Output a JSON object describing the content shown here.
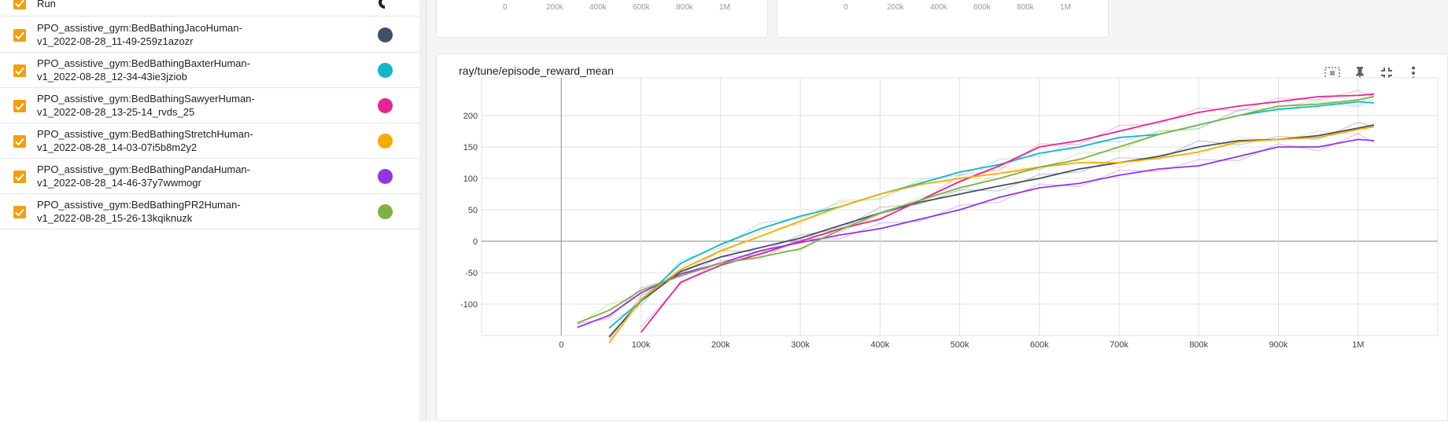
{
  "sidebar": {
    "header_label": "Run",
    "runs": [
      {
        "name_line1": "PPO_assistive_gym:BedBathingJacoHuman-",
        "name_line2": "v1_2022-08-28_11-49-259z1azozr",
        "color": "#425066"
      },
      {
        "name_line1": "PPO_assistive_gym:BedBathingBaxterHuman-",
        "name_line2": "v1_2022-08-28_12-34-43ie3jziob",
        "color": "#12b5cb"
      },
      {
        "name_line1": "PPO_assistive_gym:BedBathingSawyerHuman-",
        "name_line2": "v1_2022-08-28_13-25-14_rvds_25",
        "color": "#e52592"
      },
      {
        "name_line1": "PPO_assistive_gym:BedBathingStretchHuman-",
        "name_line2": "v1_2022-08-28_14-03-07i5b8m2y2",
        "color": "#f9ab00"
      },
      {
        "name_line1": "PPO_assistive_gym:BedBathingPandaHuman-",
        "name_line2": "v1_2022-08-28_14-46-37y7wwmogr",
        "color": "#9334e6"
      },
      {
        "name_line1": "PPO_assistive_gym:BedBathingPR2Human-",
        "name_line2": "v1_2022-08-28_15-26-13kqiknuzk",
        "color": "#7cb342"
      }
    ]
  },
  "mini_cards": {
    "ticks": [
      "0",
      "200k",
      "400k",
      "600k",
      "800k",
      "1M"
    ]
  },
  "card": {
    "title": "ray/tune/episode_reward_mean",
    "icons": [
      "fit-domain-icon",
      "pin-icon",
      "collapse-icon",
      "more-vert-icon"
    ]
  },
  "chart_data": {
    "type": "line",
    "title": "ray/tune/episode_reward_mean",
    "xlabel": "",
    "ylabel": "",
    "xlim": [
      -100000,
      1100000
    ],
    "ylim": [
      -150,
      260
    ],
    "x_ticks": [
      "0",
      "100k",
      "200k",
      "300k",
      "400k",
      "500k",
      "600k",
      "700k",
      "800k",
      "900k",
      "1M"
    ],
    "x_tick_values": [
      0,
      100000,
      200000,
      300000,
      400000,
      500000,
      600000,
      700000,
      800000,
      900000,
      1000000
    ],
    "y_ticks": [
      "-100",
      "-50",
      "0",
      "50",
      "100",
      "150",
      "200"
    ],
    "y_tick_values": [
      -100,
      -50,
      0,
      50,
      100,
      150,
      200
    ],
    "grid": true,
    "legend": "none",
    "x": [
      20000,
      60000,
      100000,
      150000,
      200000,
      250000,
      300000,
      350000,
      400000,
      450000,
      500000,
      550000,
      600000,
      650000,
      700000,
      750000,
      800000,
      850000,
      900000,
      950000,
      1000000,
      1020000
    ],
    "series": [
      {
        "color": "#425066",
        "values": [
          null,
          -152,
          -95,
          -48,
          -25,
          -10,
          5,
          25,
          45,
          62,
          75,
          88,
          100,
          115,
          125,
          135,
          150,
          160,
          162,
          168,
          180,
          185
        ]
      },
      {
        "color": "#12b5cb",
        "values": [
          null,
          -138,
          -95,
          -35,
          -5,
          20,
          40,
          55,
          75,
          92,
          110,
          122,
          140,
          150,
          165,
          170,
          185,
          200,
          210,
          215,
          222,
          220
        ]
      },
      {
        "color": "#e52592",
        "values": [
          null,
          null,
          -145,
          -65,
          -38,
          -20,
          0,
          20,
          35,
          65,
          95,
          120,
          150,
          160,
          175,
          190,
          205,
          215,
          222,
          230,
          232,
          234
        ]
      },
      {
        "color": "#f9ab00",
        "values": [
          null,
          -162,
          -92,
          -45,
          -15,
          8,
          32,
          55,
          75,
          90,
          100,
          108,
          118,
          125,
          125,
          132,
          142,
          158,
          162,
          165,
          178,
          182
        ]
      },
      {
        "color": "#9334e6",
        "values": [
          -137,
          -118,
          -82,
          -52,
          -35,
          -15,
          -2,
          10,
          20,
          35,
          50,
          70,
          85,
          92,
          105,
          115,
          120,
          135,
          150,
          150,
          162,
          160
        ]
      },
      {
        "color": "#7cb342",
        "values": [
          -130,
          -110,
          -78,
          -55,
          -35,
          -25,
          -12,
          18,
          45,
          65,
          85,
          100,
          118,
          130,
          150,
          170,
          185,
          200,
          215,
          218,
          225,
          230
        ]
      }
    ]
  }
}
